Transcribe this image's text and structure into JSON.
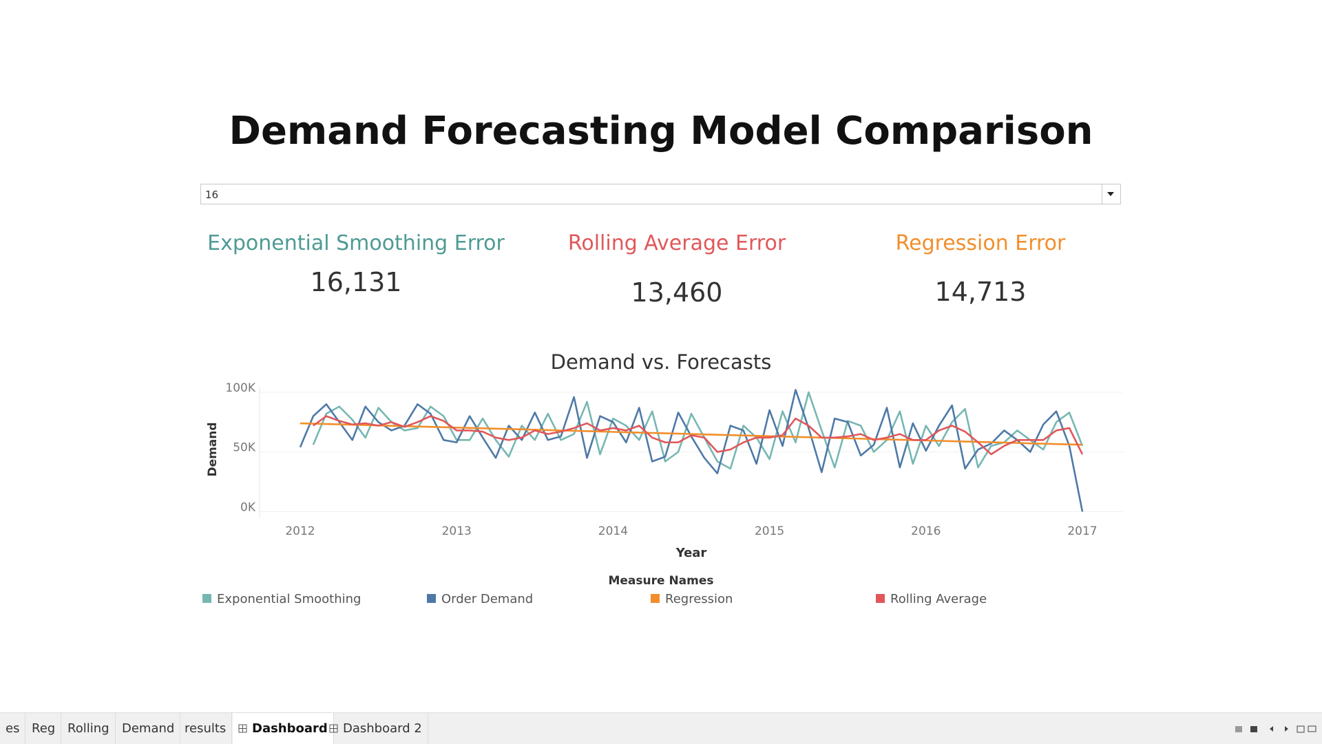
{
  "header": {
    "title": "Demand Forecasting Model Comparison"
  },
  "filter": {
    "value": "16"
  },
  "kpis": [
    {
      "title": "Exponential Smoothing Error",
      "value": "16,131",
      "color": "#4e9a94"
    },
    {
      "title": "Rolling Average Error",
      "value": "13,460",
      "color": "#e15759"
    },
    {
      "title": "Regression Error",
      "value": "14,713",
      "color": "#f28e2b"
    }
  ],
  "chart_data": {
    "type": "line",
    "title": "Demand vs. Forecasts",
    "x_label": "Year",
    "y_label": "Demand",
    "legend_title": "Measure Names",
    "categories": [
      "2012",
      null,
      null,
      null,
      null,
      null,
      null,
      null,
      null,
      null,
      null,
      null,
      "2013",
      null,
      null,
      null,
      null,
      null,
      null,
      null,
      null,
      null,
      null,
      null,
      "2014",
      null,
      null,
      null,
      null,
      null,
      null,
      null,
      null,
      null,
      null,
      null,
      "2015",
      null,
      null,
      null,
      null,
      null,
      null,
      null,
      null,
      null,
      null,
      null,
      "2016",
      null,
      null,
      null,
      null,
      null,
      null,
      null,
      null,
      null,
      null,
      null,
      "2017"
    ],
    "ylim": [
      -5000,
      104000
    ],
    "yticks": [
      {
        "value": 0,
        "label": "0K"
      },
      {
        "value": 50000,
        "label": "50K"
      },
      {
        "value": 100000,
        "label": "100K"
      }
    ],
    "grid": true,
    "series": [
      {
        "name": "Exponential Smoothing",
        "color": "#76b7b2",
        "values": [
          null,
          56000,
          82000,
          88000,
          77000,
          62000,
          87000,
          75000,
          68000,
          70000,
          88000,
          80000,
          60000,
          60000,
          78000,
          60000,
          46000,
          72000,
          60000,
          82000,
          60000,
          65000,
          92000,
          48000,
          78000,
          72000,
          60000,
          84000,
          42000,
          50000,
          82000,
          62000,
          42000,
          36000,
          72000,
          62000,
          44000,
          84000,
          58000,
          100000,
          68000,
          37000,
          76000,
          72000,
          50000,
          60000,
          84000,
          40000,
          72000,
          55000,
          75000,
          86000,
          37000,
          55000,
          58000,
          68000,
          60000,
          52000,
          75000,
          83000,
          55000
        ]
      },
      {
        "name": "Order Demand",
        "color": "#4e79a7",
        "values": [
          54000,
          80000,
          90000,
          75000,
          60000,
          88000,
          75000,
          68000,
          72000,
          90000,
          82000,
          60000,
          58000,
          80000,
          62000,
          45000,
          72000,
          60000,
          83000,
          60000,
          63000,
          96000,
          45000,
          80000,
          75000,
          58000,
          87000,
          42000,
          46000,
          83000,
          63000,
          45000,
          32000,
          72000,
          68000,
          40000,
          85000,
          55000,
          102000,
          70000,
          33000,
          78000,
          75000,
          47000,
          56000,
          87000,
          37000,
          74000,
          51000,
          72000,
          89000,
          36000,
          52000,
          57000,
          68000,
          60000,
          50000,
          73000,
          84000,
          55000,
          0
        ]
      },
      {
        "name": "Regression",
        "color": "#f28e2b",
        "values": [
          74000,
          73700,
          73400,
          73100,
          72800,
          72500,
          72200,
          71900,
          71600,
          71300,
          71000,
          70700,
          70400,
          70100,
          69800,
          69500,
          69200,
          68900,
          68600,
          68300,
          68000,
          67700,
          67400,
          67100,
          66800,
          66500,
          66200,
          65900,
          65600,
          65300,
          65000,
          64700,
          64400,
          64100,
          63800,
          63500,
          63200,
          62900,
          62600,
          62300,
          62000,
          61700,
          61400,
          61100,
          60800,
          60500,
          60200,
          59900,
          59600,
          59300,
          59000,
          58700,
          58400,
          58100,
          57800,
          57500,
          57200,
          56900,
          56600,
          56300,
          56000
        ]
      },
      {
        "name": "Rolling Average",
        "color": "#e15759",
        "values": [
          null,
          72000,
          80000,
          76000,
          73000,
          74000,
          72000,
          75000,
          71000,
          75000,
          80000,
          76000,
          68000,
          68000,
          67000,
          62000,
          60000,
          62000,
          68000,
          65000,
          67000,
          70000,
          74000,
          68000,
          70000,
          68000,
          72000,
          62000,
          58000,
          58000,
          64000,
          62000,
          50000,
          52000,
          58000,
          62000,
          62000,
          64000,
          78000,
          72000,
          62000,
          62000,
          63000,
          65000,
          60000,
          62000,
          65000,
          60000,
          60000,
          68000,
          72000,
          67000,
          58000,
          48000,
          55000,
          60000,
          60000,
          60000,
          68000,
          70000,
          48000
        ]
      }
    ]
  },
  "tabs": [
    "es",
    "Reg",
    "Rolling",
    "Demand",
    "results",
    "Dashboard",
    "Dashboard 2"
  ]
}
